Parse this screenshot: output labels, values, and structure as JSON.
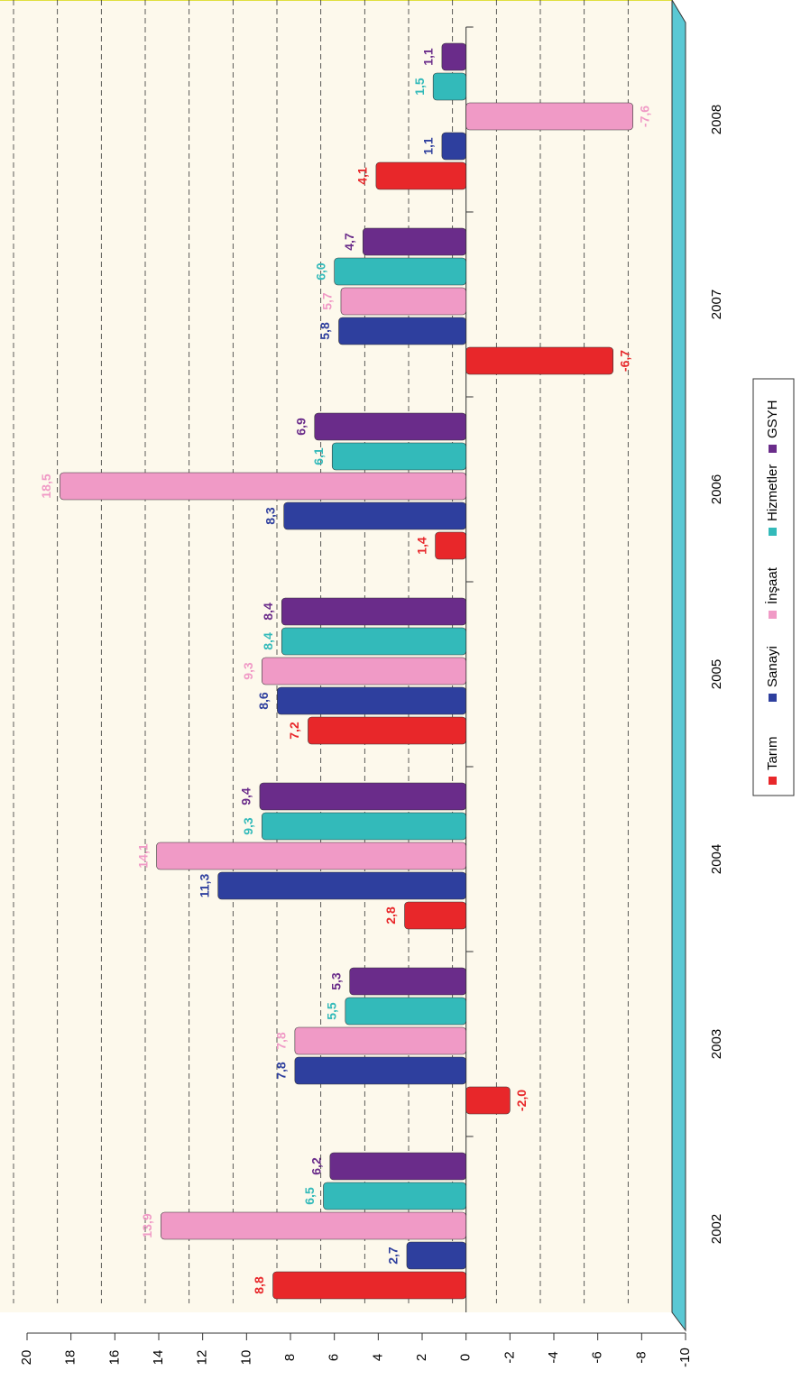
{
  "chart_data": {
    "type": "bar",
    "categories": [
      "2002",
      "2003",
      "2004",
      "2005",
      "2006",
      "2007",
      "2008"
    ],
    "series": [
      {
        "name": "Tarım",
        "color": "#e8272a",
        "values": [
          8.8,
          -2.0,
          2.8,
          7.2,
          1.4,
          -6.7,
          4.1
        ],
        "value_labels": [
          "8,8",
          "-2,0",
          "2,8",
          "7,2",
          "1,4",
          "-6,7",
          "4,1"
        ]
      },
      {
        "name": "Sanayi",
        "color": "#2e3f9e",
        "values": [
          2.7,
          7.8,
          11.3,
          8.6,
          8.3,
          5.8,
          1.1
        ],
        "value_labels": [
          "2,7",
          "7,8",
          "11,3",
          "8,6",
          "8,3",
          "5,8",
          "1,1"
        ]
      },
      {
        "name": "İnşaat",
        "color": "#f09ac6",
        "values": [
          13.9,
          7.8,
          14.1,
          9.3,
          18.5,
          5.7,
          -7.6
        ],
        "value_labels": [
          "13,9",
          "7,8",
          "14,1",
          "9,3",
          "18,5",
          "5,7",
          "-7,6"
        ]
      },
      {
        "name": "Hizmetler",
        "color": "#33baba",
        "values": [
          6.5,
          5.5,
          9.3,
          8.4,
          6.1,
          6.0,
          1.5
        ],
        "value_labels": [
          "6,5",
          "5,5",
          "9,3",
          "8,4",
          "6,1",
          "6,0",
          "1,5"
        ]
      },
      {
        "name": "GSYH",
        "color": "#6a2c8a",
        "values": [
          6.2,
          5.3,
          9.4,
          8.4,
          6.9,
          4.7,
          1.1
        ],
        "value_labels": [
          "6,2",
          "5,3",
          "9,4",
          "8,4",
          "6,9",
          "4,7",
          "1,1"
        ]
      }
    ],
    "ylim": [
      -10,
      20
    ],
    "yticks": [
      20,
      18,
      16,
      14,
      12,
      10,
      8,
      6,
      4,
      2,
      0,
      -2,
      -4,
      -6,
      -8,
      -10
    ],
    "grid": true,
    "legend": "bottom"
  }
}
